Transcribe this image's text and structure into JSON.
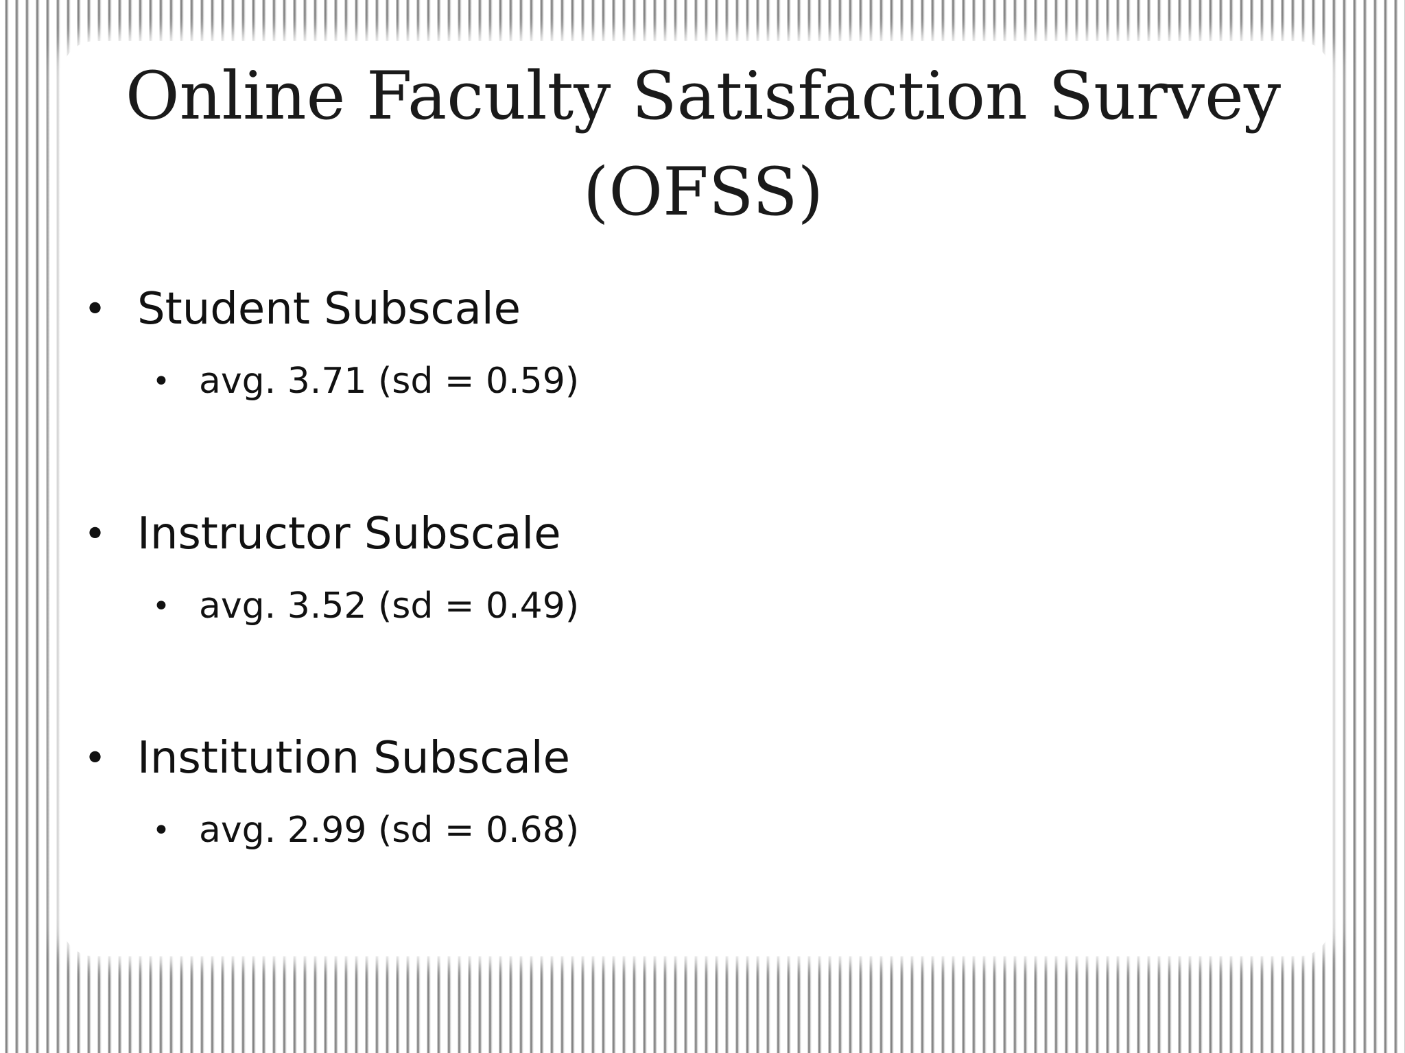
{
  "slide": {
    "title": "Online Faculty Satisfaction Survey (OFSS)",
    "bullets": [
      {
        "label": "Student Subscale",
        "detail": "avg. 3.71 (sd = 0.59)"
      },
      {
        "label": "Instructor Subscale",
        "detail": "avg. 3.52 (sd = 0.49)"
      },
      {
        "label": "Institution Subscale",
        "detail": "avg. 2.99 (sd = 0.68)"
      }
    ]
  }
}
